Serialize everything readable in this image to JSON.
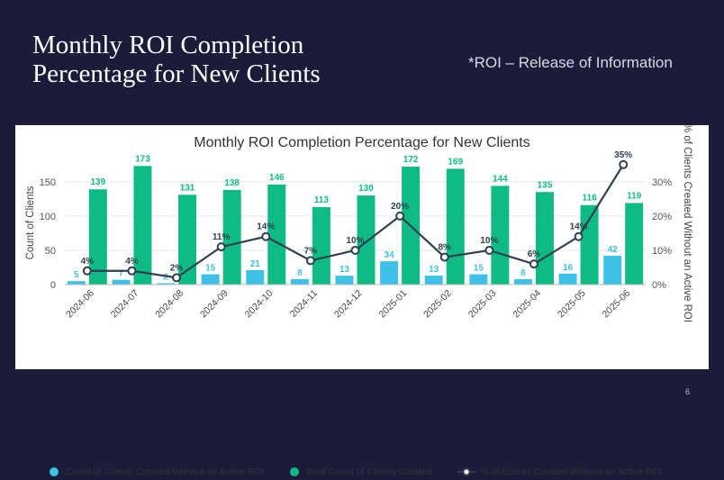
{
  "slide": {
    "title": "Monthly ROI Completion Percentage for New Clients",
    "note": "*ROI – Release of Information",
    "page_number": "6"
  },
  "colors": {
    "background": "#1c1c3a",
    "count_without_roi": "#3ec1e6",
    "total_count": "#0fbb84",
    "pct_line": "#2e3f52"
  },
  "chart_data": {
    "type": "bar",
    "title": "Monthly ROI Completion Percentage for New Clients",
    "categories": [
      "2024-06",
      "2024-07",
      "2024-08",
      "2024-09",
      "2024-10",
      "2024-11",
      "2024-12",
      "2025-01",
      "2025-02",
      "2025-03",
      "2025-04",
      "2025-05",
      "2025-06"
    ],
    "series": [
      {
        "name": "Count of Clients Created Without an Active ROI",
        "type": "bar",
        "axis": "left",
        "values": [
          5,
          7,
          2,
          15,
          21,
          8,
          13,
          34,
          13,
          15,
          8,
          16,
          42
        ]
      },
      {
        "name": "Total Count of Clients Created",
        "type": "bar",
        "axis": "left",
        "values": [
          139,
          173,
          131,
          138,
          146,
          113,
          130,
          172,
          169,
          144,
          135,
          116,
          119
        ]
      },
      {
        "name": "% of Clients Created Without an Active ROI",
        "type": "line",
        "axis": "right",
        "values": [
          4,
          4,
          2,
          11,
          14,
          7,
          10,
          20,
          8,
          10,
          6,
          14,
          35
        ],
        "labels": [
          "4%",
          "4%",
          "2%",
          "11%",
          "14%",
          "7%",
          "10%",
          "20%",
          "8%",
          "10%",
          "6%",
          "14%",
          "35%"
        ]
      }
    ],
    "ylabel": "Count of Clients",
    "ylim": [
      0,
      180
    ],
    "yticks": [
      "0",
      "50",
      "100",
      "150"
    ],
    "y2label": "% of Clients Created Without an Active ROI",
    "y2lim": [
      0,
      36
    ],
    "y2ticks": [
      "0%",
      "10%",
      "20%",
      "30%"
    ],
    "legend_position": "bottom"
  }
}
